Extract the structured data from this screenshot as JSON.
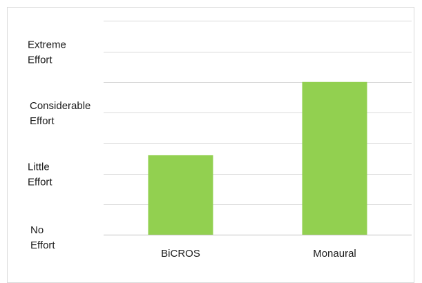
{
  "chart_data": {
    "type": "bar",
    "categories": [
      "BiCROS",
      "Monaural"
    ],
    "values": [
      1.3,
      2.5
    ],
    "ylim": [
      0,
      3.5
    ],
    "y_tick_labels": [
      {
        "value": 0,
        "lines": [
          "No",
          "Effort"
        ]
      },
      {
        "value": 1,
        "lines": [
          "Little",
          "Effort"
        ]
      },
      {
        "value": 2,
        "lines": [
          "Considerable",
          "Effort"
        ]
      },
      {
        "value": 3,
        "lines": [
          "Extreme",
          "Effort"
        ]
      }
    ],
    "grid": true,
    "legend": "none",
    "bar_color": "#92d050"
  }
}
